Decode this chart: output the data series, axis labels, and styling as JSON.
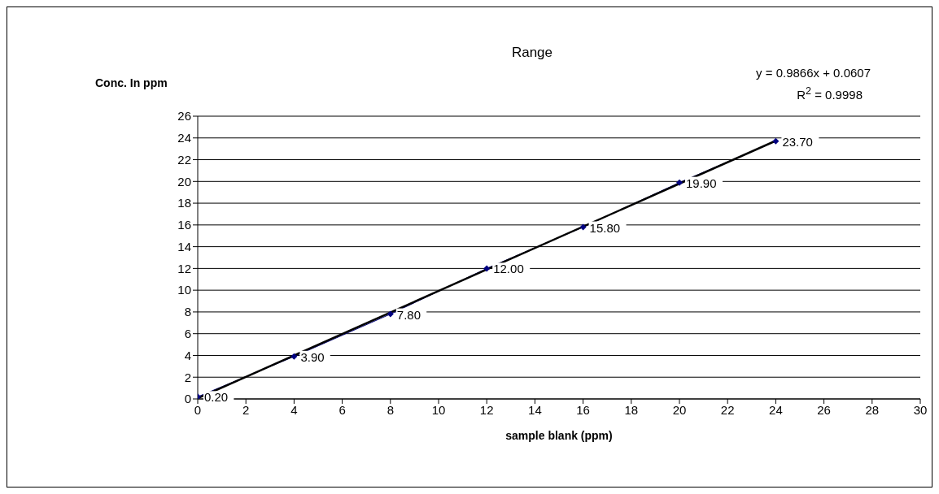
{
  "chart_data": {
    "type": "line",
    "title": "Range",
    "xlabel": "sample blank (ppm)",
    "ylabel": "Conc. In ppm",
    "annotations": [
      "y = 0.9866x + 0.0607",
      "R$^{2}$ = 0.9998"
    ],
    "series": [
      {
        "color": "#000080",
        "marker": "diamond",
        "x": [
          0,
          4,
          8,
          12,
          16,
          20,
          24
        ],
        "values": [
          0.2,
          3.9,
          7.8,
          12.0,
          15.8,
          19.9,
          23.7
        ],
        "value_labels": [
          "0.20",
          "3.90",
          "7.80",
          "12.00",
          "15.80",
          "19.90",
          "23.70"
        ]
      },
      {
        "color": "#000000",
        "marker": "none",
        "x": [
          0,
          24
        ],
        "values": [
          0.06,
          23.74
        ]
      }
    ],
    "xlim": [
      0,
      30
    ],
    "xticks": [
      0,
      2,
      4,
      6,
      8,
      10,
      12,
      14,
      16,
      18,
      20,
      22,
      24,
      26,
      28,
      30
    ],
    "ylim": [
      0,
      26
    ],
    "yticks": [
      0,
      2,
      4,
      6,
      8,
      10,
      12,
      14,
      16,
      18,
      20,
      22,
      24,
      26
    ],
    "grid": "y",
    "legend": false
  }
}
